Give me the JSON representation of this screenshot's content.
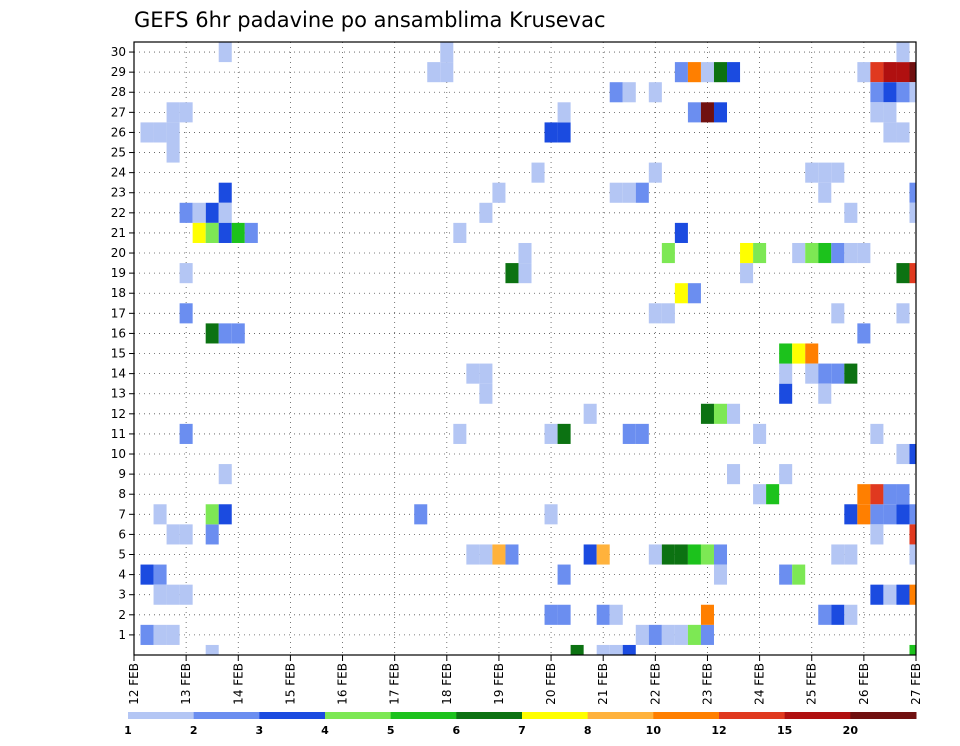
{
  "chart_data": {
    "type": "heatmap",
    "title": "GEFS 6hr padavine po ansamblima Krusevac",
    "x_ticks": [
      "12 FEB",
      "13 FEB",
      "14 FEB",
      "15 FEB",
      "16 FEB",
      "17 FEB",
      "18 FEB",
      "19 FEB",
      "20 FEB",
      "21 FEB",
      "22 FEB",
      "23 FEB",
      "24 FEB",
      "25 FEB",
      "26 FEB",
      "27 FEB"
    ],
    "y_ticks": [
      "1",
      "2",
      "3",
      "4",
      "5",
      "6",
      "7",
      "8",
      "9",
      "10",
      "11",
      "12",
      "13",
      "14",
      "15",
      "16",
      "17",
      "18",
      "19",
      "20",
      "21",
      "22",
      "23",
      "24",
      "25",
      "26",
      "27",
      "28",
      "29",
      "30"
    ],
    "time_step_hours": 6,
    "grid": true,
    "colorbar": {
      "boundaries": [
        "1",
        "2",
        "3",
        "4",
        "5",
        "6",
        "7",
        "8",
        "10",
        "12",
        "15",
        "20"
      ],
      "colors": [
        "#b4c6f4",
        "#6b8ef0",
        "#1b4be0",
        "#7de854",
        "#1cc21c",
        "#0c7212",
        "#ffff00",
        "#ffb23c",
        "#ff7f00",
        "#e0391f",
        "#b01010",
        "#701010"
      ]
    },
    "cells": [
      [
        0.25,
        1,
        1
      ],
      [
        0.5,
        1,
        0
      ],
      [
        0.75,
        1,
        0
      ],
      [
        0.25,
        4,
        2
      ],
      [
        0.5,
        4,
        1
      ],
      [
        0.5,
        3,
        0
      ],
      [
        0.75,
        3,
        0
      ],
      [
        1,
        3,
        0
      ],
      [
        0.75,
        6,
        0
      ],
      [
        1,
        6,
        0
      ],
      [
        0.5,
        7,
        0
      ],
      [
        0.25,
        26,
        0
      ],
      [
        0.5,
        26,
        0
      ],
      [
        0.75,
        26,
        0
      ],
      [
        0.75,
        25,
        0
      ],
      [
        0.75,
        27,
        0
      ],
      [
        1,
        27,
        0
      ],
      [
        1,
        19,
        0
      ],
      [
        1,
        22,
        1
      ],
      [
        1,
        17,
        1
      ],
      [
        1,
        11,
        1
      ],
      [
        1.5,
        6,
        1
      ],
      [
        1.5,
        7,
        3
      ],
      [
        1.75,
        7,
        2
      ],
      [
        1.75,
        9,
        0
      ],
      [
        1.5,
        0,
        0
      ],
      [
        1.75,
        30,
        0
      ],
      [
        1.75,
        23,
        2
      ],
      [
        1.5,
        22,
        2
      ],
      [
        1.25,
        22,
        0
      ],
      [
        1.75,
        22,
        0
      ],
      [
        1.25,
        21,
        6
      ],
      [
        1.5,
        21,
        3
      ],
      [
        1.75,
        21,
        2
      ],
      [
        2,
        21,
        4
      ],
      [
        2.25,
        21,
        1
      ],
      [
        1.5,
        16,
        5
      ],
      [
        1.75,
        16,
        1
      ],
      [
        2,
        16,
        1
      ],
      [
        5.5,
        7,
        1
      ],
      [
        5.75,
        29,
        0
      ],
      [
        6,
        29,
        0
      ],
      [
        6,
        30,
        0
      ],
      [
        6.25,
        11,
        0
      ],
      [
        6.25,
        21,
        0
      ],
      [
        6.5,
        14,
        0
      ],
      [
        6.75,
        14,
        0
      ],
      [
        6.75,
        13,
        0
      ],
      [
        6.75,
        22,
        0
      ],
      [
        7,
        23,
        0
      ],
      [
        6.5,
        5,
        0
      ],
      [
        6.75,
        5,
        0
      ],
      [
        7,
        5,
        7
      ],
      [
        7.25,
        5,
        1
      ],
      [
        7.25,
        19,
        5
      ],
      [
        7.5,
        19,
        0
      ],
      [
        7.5,
        20,
        0
      ],
      [
        7.75,
        24,
        0
      ],
      [
        8,
        26,
        2
      ],
      [
        8.25,
        26,
        2
      ],
      [
        8.25,
        27,
        0
      ],
      [
        8,
        11,
        0
      ],
      [
        8.25,
        11,
        5
      ],
      [
        8,
        7,
        0
      ],
      [
        8.25,
        4,
        1
      ],
      [
        8,
        2,
        1
      ],
      [
        8.25,
        2,
        1
      ],
      [
        8.5,
        0,
        5
      ],
      [
        8.75,
        12,
        0
      ],
      [
        8.75,
        5,
        2
      ],
      [
        9,
        5,
        7
      ],
      [
        9,
        0,
        0
      ],
      [
        9.25,
        0,
        0
      ],
      [
        9.5,
        0,
        2
      ],
      [
        9,
        2,
        1
      ],
      [
        9.25,
        2,
        0
      ],
      [
        9.25,
        28,
        1
      ],
      [
        9.5,
        28,
        0
      ],
      [
        9.25,
        23,
        0
      ],
      [
        9.5,
        23,
        0
      ],
      [
        9.75,
        23,
        1
      ],
      [
        9.5,
        11,
        1
      ],
      [
        9.75,
        11,
        1
      ],
      [
        9.75,
        1,
        0
      ],
      [
        10,
        1,
        1
      ],
      [
        10.25,
        1,
        0
      ],
      [
        10.5,
        1,
        0
      ],
      [
        10.75,
        1,
        3
      ],
      [
        11,
        1,
        1
      ],
      [
        10,
        5,
        0
      ],
      [
        10.25,
        5,
        5
      ],
      [
        10.5,
        5,
        5
      ],
      [
        10.75,
        5,
        4
      ],
      [
        11,
        5,
        3
      ],
      [
        11.25,
        5,
        1
      ],
      [
        10,
        17,
        0
      ],
      [
        10.25,
        17,
        0
      ],
      [
        10,
        28,
        0
      ],
      [
        10,
        24,
        0
      ],
      [
        10.25,
        20,
        3
      ],
      [
        10.5,
        18,
        6
      ],
      [
        10.75,
        18,
        1
      ],
      [
        10.5,
        21,
        2
      ],
      [
        10.5,
        29,
        1
      ],
      [
        10.75,
        29,
        8
      ],
      [
        11,
        29,
        0
      ],
      [
        11.25,
        29,
        5
      ],
      [
        11.5,
        29,
        2
      ],
      [
        10.75,
        27,
        1
      ],
      [
        11,
        27,
        11
      ],
      [
        11.25,
        27,
        2
      ],
      [
        11,
        12,
        5
      ],
      [
        11.25,
        12,
        3
      ],
      [
        11.5,
        12,
        0
      ],
      [
        11,
        2,
        8
      ],
      [
        11.25,
        4,
        0
      ],
      [
        11.5,
        9,
        0
      ],
      [
        11.75,
        19,
        0
      ],
      [
        11.75,
        20,
        6
      ],
      [
        12,
        20,
        3
      ],
      [
        12,
        8,
        0
      ],
      [
        12.25,
        8,
        4
      ],
      [
        12,
        11,
        0
      ],
      [
        12.5,
        4,
        1
      ],
      [
        12.75,
        4,
        3
      ],
      [
        12.5,
        9,
        0
      ],
      [
        12.5,
        13,
        2
      ],
      [
        12.5,
        14,
        0
      ],
      [
        12.5,
        15,
        4
      ],
      [
        12.75,
        15,
        6
      ],
      [
        13,
        15,
        8
      ],
      [
        12.75,
        20,
        0
      ],
      [
        13,
        20,
        3
      ],
      [
        13.25,
        20,
        4
      ],
      [
        13.5,
        20,
        1
      ],
      [
        13.75,
        20,
        0
      ],
      [
        14,
        20,
        0
      ],
      [
        13,
        14,
        0
      ],
      [
        13.25,
        14,
        1
      ],
      [
        13.5,
        14,
        1
      ],
      [
        13.75,
        14,
        5
      ],
      [
        13.25,
        13,
        0
      ],
      [
        13,
        24,
        0
      ],
      [
        13.25,
        24,
        0
      ],
      [
        13.25,
        23,
        0
      ],
      [
        13.5,
        24,
        0
      ],
      [
        13.5,
        17,
        0
      ],
      [
        13.25,
        2,
        1
      ],
      [
        13.5,
        2,
        2
      ],
      [
        13.75,
        2,
        0
      ],
      [
        13.5,
        5,
        0
      ],
      [
        13.75,
        5,
        0
      ],
      [
        13.75,
        22,
        0
      ],
      [
        13.75,
        7,
        2
      ],
      [
        14,
        7,
        8
      ],
      [
        14.25,
        7,
        1
      ],
      [
        14.5,
        7,
        1
      ],
      [
        14.75,
        7,
        2
      ],
      [
        15,
        7,
        1
      ],
      [
        14,
        8,
        8
      ],
      [
        14.25,
        8,
        9
      ],
      [
        14.5,
        8,
        1
      ],
      [
        14.75,
        8,
        1
      ],
      [
        14.25,
        6,
        0
      ],
      [
        14,
        16,
        1
      ],
      [
        14.25,
        3,
        2
      ],
      [
        14.5,
        3,
        0
      ],
      [
        14.75,
        3,
        2
      ],
      [
        15,
        3,
        8
      ],
      [
        14.25,
        11,
        0
      ],
      [
        14,
        29,
        0
      ],
      [
        14.25,
        29,
        9
      ],
      [
        14.5,
        29,
        10
      ],
      [
        14.75,
        29,
        10
      ],
      [
        15,
        29,
        11
      ],
      [
        14.25,
        28,
        1
      ],
      [
        14.5,
        28,
        2
      ],
      [
        14.75,
        28,
        1
      ],
      [
        15,
        28,
        0
      ],
      [
        14.25,
        27,
        0
      ],
      [
        14.5,
        27,
        0
      ],
      [
        14.5,
        26,
        0
      ],
      [
        14.75,
        26,
        0
      ],
      [
        14.75,
        17,
        0
      ],
      [
        14.75,
        19,
        5
      ],
      [
        15,
        19,
        9
      ],
      [
        14.75,
        30,
        0
      ],
      [
        15,
        23,
        1
      ],
      [
        15,
        22,
        0
      ],
      [
        14.75,
        10,
        0
      ],
      [
        15,
        10,
        2
      ],
      [
        15,
        6,
        9
      ],
      [
        15,
        5,
        0
      ],
      [
        15,
        0,
        4
      ]
    ]
  }
}
